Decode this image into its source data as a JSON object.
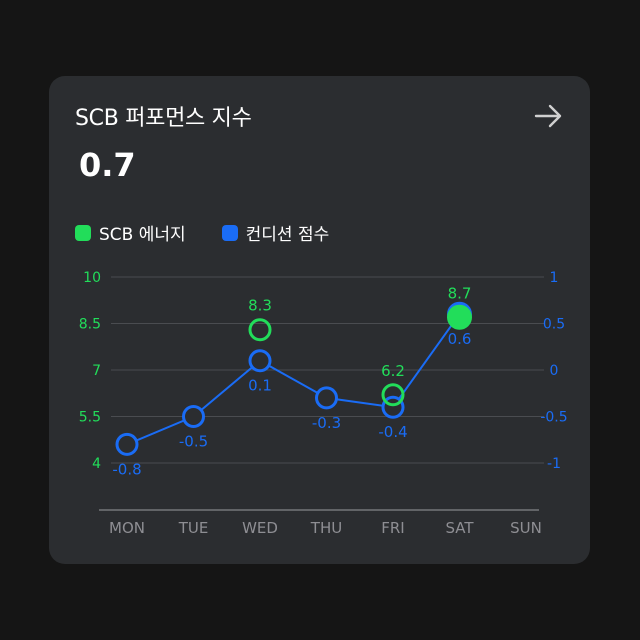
{
  "card": {
    "title": "SCB 퍼포먼스 지수",
    "value": "0.7",
    "arrow_icon": "arrow-right-icon"
  },
  "colors": {
    "energy": "#22dd5a",
    "condition": "#1a6cf5",
    "grid": "#4a4c50",
    "axis_text": "#8e8e93",
    "card_bg": "#2b2d30"
  },
  "legend": [
    {
      "label": "SCB 에너지",
      "color": "#22dd5a"
    },
    {
      "label": "컨디션 점수",
      "color": "#1a6cf5"
    }
  ],
  "chart_data": {
    "type": "line",
    "categories": [
      "MON",
      "TUE",
      "WED",
      "THU",
      "FRI",
      "SAT",
      "SUN"
    ],
    "left_axis": {
      "ticks": [
        "10",
        "8.5",
        "7",
        "5.5",
        "4"
      ],
      "ylim": [
        4,
        10
      ]
    },
    "right_axis": {
      "ticks": [
        "1",
        "0.5",
        "0",
        "-0.5",
        "-1"
      ],
      "ylim": [
        -1,
        1
      ]
    },
    "series": [
      {
        "name": "SCB 에너지",
        "axis": "left",
        "color": "#22dd5a",
        "values": [
          null,
          null,
          8.3,
          null,
          6.2,
          8.7,
          null
        ],
        "labels": [
          null,
          null,
          "8.3",
          null,
          "6.2",
          "8.7",
          null
        ]
      },
      {
        "name": "컨디션 점수",
        "axis": "right",
        "color": "#1a6cf5",
        "values": [
          -0.8,
          -0.5,
          0.1,
          -0.3,
          -0.4,
          0.6,
          null
        ],
        "labels": [
          "-0.8",
          "-0.5",
          "0.1",
          "-0.3",
          "-0.4",
          "0.6",
          null
        ]
      }
    ],
    "grid": true
  }
}
